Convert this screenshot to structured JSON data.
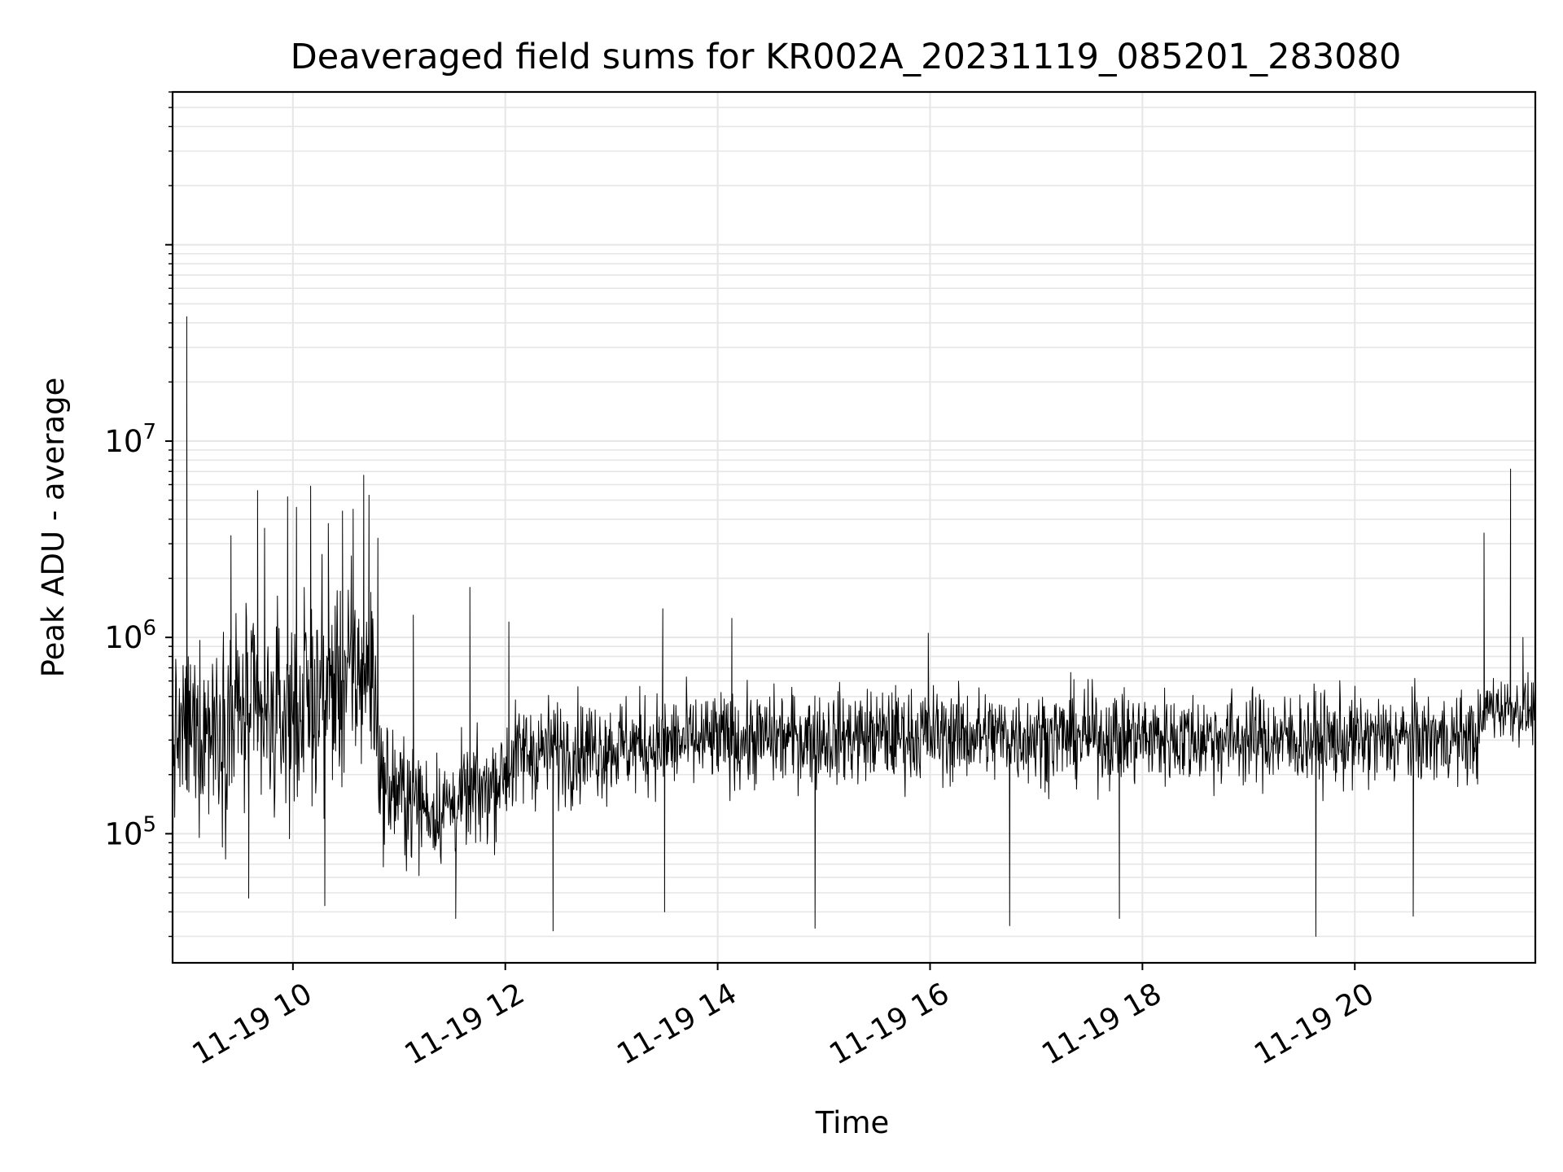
{
  "chart_data": {
    "type": "line",
    "title": "Deaveraged field sums for KR002A_20231119_085201_283080",
    "xlabel": "Time",
    "ylabel": "Peak ADU - average",
    "yscale": "log",
    "grid": true,
    "legend": "none",
    "x_range": [
      "2023-11-19T08:52",
      "2023-11-19T21:42"
    ],
    "ylim": [
      22000,
      600000000
    ],
    "x_ticks": [
      {
        "label": "11-19 10",
        "t": "2023-11-19T10:00"
      },
      {
        "label": "11-19 12",
        "t": "2023-11-19T12:00"
      },
      {
        "label": "11-19 14",
        "t": "2023-11-19T14:00"
      },
      {
        "label": "11-19 16",
        "t": "2023-11-19T16:00"
      },
      {
        "label": "11-19 18",
        "t": "2023-11-19T18:00"
      },
      {
        "label": "11-19 20",
        "t": "2023-11-19T20:00"
      }
    ],
    "y_ticks": [
      {
        "base": "10",
        "exp": "5",
        "value": 100000
      },
      {
        "base": "10",
        "exp": "6",
        "value": 1000000
      },
      {
        "base": "10",
        "exp": "7",
        "value": 10000000
      }
    ],
    "series": [
      {
        "color": "#000000",
        "line_width": 1,
        "profile": [
          {
            "t": "2023-11-19T08:52",
            "median": 300000,
            "spread": 0.35
          },
          {
            "t": "2023-11-19T09:30",
            "median": 420000,
            "spread": 0.5
          },
          {
            "t": "2023-11-19T09:45",
            "median": 350000,
            "spread": 0.45
          },
          {
            "t": "2023-11-19T10:20",
            "median": 550000,
            "spread": 0.5
          },
          {
            "t": "2023-11-19T10:45",
            "median": 700000,
            "spread": 0.45
          },
          {
            "t": "2023-11-19T10:50",
            "median": 180000,
            "spread": 0.3
          },
          {
            "t": "2023-11-19T11:20",
            "median": 130000,
            "spread": 0.25
          },
          {
            "t": "2023-11-19T11:50",
            "median": 170000,
            "spread": 0.25
          },
          {
            "t": "2023-11-19T12:10",
            "median": 260000,
            "spread": 0.25
          },
          {
            "t": "2023-11-19T14:00",
            "median": 300000,
            "spread": 0.22
          },
          {
            "t": "2023-11-19T16:00",
            "median": 320000,
            "spread": 0.22
          },
          {
            "t": "2023-11-19T18:00",
            "median": 310000,
            "spread": 0.22
          },
          {
            "t": "2023-11-19T20:00",
            "median": 300000,
            "spread": 0.22
          },
          {
            "t": "2023-11-19T21:10",
            "median": 310000,
            "spread": 0.2
          },
          {
            "t": "2023-11-19T21:15",
            "median": 450000,
            "spread": 0.15
          },
          {
            "t": "2023-11-19T21:42",
            "median": 420000,
            "spread": 0.15
          }
        ],
        "spikes": [
          {
            "t": "2023-11-19T09:00",
            "value": 43000000
          },
          {
            "t": "2023-11-19T09:25",
            "value": 3300000
          },
          {
            "t": "2023-11-19T09:40",
            "value": 5600000
          },
          {
            "t": "2023-11-19T09:44",
            "value": 3600000
          },
          {
            "t": "2023-11-19T09:57",
            "value": 5200000
          },
          {
            "t": "2023-11-19T10:02",
            "value": 4600000
          },
          {
            "t": "2023-11-19T10:10",
            "value": 5900000
          },
          {
            "t": "2023-11-19T10:20",
            "value": 3800000
          },
          {
            "t": "2023-11-19T10:28",
            "value": 4400000
          },
          {
            "t": "2023-11-19T10:34",
            "value": 4500000
          },
          {
            "t": "2023-11-19T10:40",
            "value": 6700000
          },
          {
            "t": "2023-11-19T10:43",
            "value": 5300000
          },
          {
            "t": "2023-11-19T10:48",
            "value": 3200000
          },
          {
            "t": "2023-11-19T11:08",
            "value": 1300000
          },
          {
            "t": "2023-11-19T11:40",
            "value": 1800000
          },
          {
            "t": "2023-11-19T12:02",
            "value": 1200000
          },
          {
            "t": "2023-11-19T13:29",
            "value": 1400000
          },
          {
            "t": "2023-11-19T14:08",
            "value": 1250000
          },
          {
            "t": "2023-11-19T15:59",
            "value": 1050000
          },
          {
            "t": "2023-11-19T21:13",
            "value": 3400000
          },
          {
            "t": "2023-11-19T21:28",
            "value": 7200000
          },
          {
            "t": "2023-11-19T21:35",
            "value": 1000000
          }
        ],
        "dips": [
          {
            "t": "2023-11-19T09:35",
            "value": 47000
          },
          {
            "t": "2023-11-19T10:18",
            "value": 43000
          },
          {
            "t": "2023-11-19T11:32",
            "value": 37000
          },
          {
            "t": "2023-11-19T12:27",
            "value": 32000
          },
          {
            "t": "2023-11-19T13:30",
            "value": 40000
          },
          {
            "t": "2023-11-19T14:55",
            "value": 33000
          },
          {
            "t": "2023-11-19T16:45",
            "value": 34000
          },
          {
            "t": "2023-11-19T17:47",
            "value": 37000
          },
          {
            "t": "2023-11-19T19:38",
            "value": 30000
          },
          {
            "t": "2023-11-19T20:33",
            "value": 38000
          }
        ]
      }
    ]
  }
}
